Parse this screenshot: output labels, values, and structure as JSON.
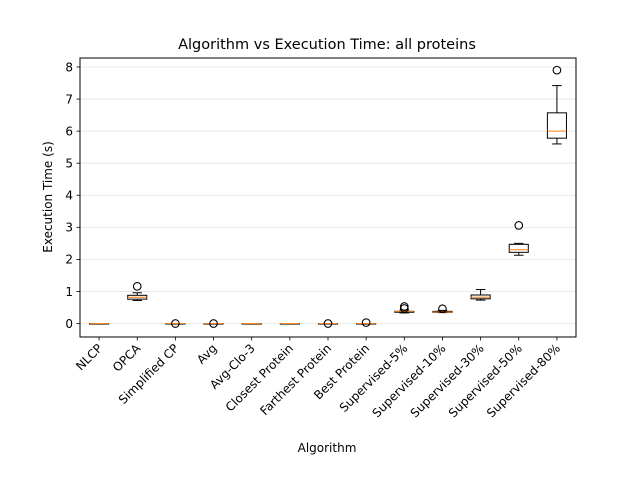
{
  "chart_data": {
    "type": "box",
    "title": "Algorithm vs Execution Time: all proteins",
    "xlabel": "Algorithm",
    "ylabel": "Execution Time (s)",
    "ylim": [
      -0.42,
      8.28
    ],
    "yticks": [
      0,
      1,
      2,
      3,
      4,
      5,
      6,
      7,
      8
    ],
    "grid": "horizontal",
    "colors": {
      "box": "#000000",
      "median": "#ff7f0e",
      "grid": "#e6e6e6"
    },
    "categories": [
      "NLCP",
      "OPCA",
      "Simplified CP",
      "Avg",
      "Avg-Clo-3",
      "Closest Protein",
      "Farthest Protein",
      "Best Protein",
      "Supervised-5%",
      "Supervised-10%",
      "Supervised-30%",
      "Supervised-50%",
      "Supervised-80%"
    ],
    "boxes": [
      {
        "whislo": 0.0,
        "q1": 0.0,
        "med": 0.0,
        "q3": 0.0,
        "whishi": 0.0,
        "fliers": []
      },
      {
        "whislo": 0.72,
        "q1": 0.76,
        "med": 0.82,
        "q3": 0.88,
        "whishi": 0.96,
        "fliers": [
          1.16
        ]
      },
      {
        "whislo": 0.0,
        "q1": 0.0,
        "med": 0.0,
        "q3": 0.0,
        "whishi": 0.0,
        "fliers": [
          0.0
        ]
      },
      {
        "whislo": 0.0,
        "q1": 0.0,
        "med": 0.0,
        "q3": 0.0,
        "whishi": 0.0,
        "fliers": [
          0.0
        ]
      },
      {
        "whislo": 0.0,
        "q1": 0.0,
        "med": 0.0,
        "q3": 0.0,
        "whishi": 0.0,
        "fliers": []
      },
      {
        "whislo": 0.0,
        "q1": 0.0,
        "med": 0.0,
        "q3": 0.0,
        "whishi": 0.0,
        "fliers": []
      },
      {
        "whislo": 0.0,
        "q1": 0.0,
        "med": 0.0,
        "q3": 0.0,
        "whishi": 0.0,
        "fliers": [
          0.0
        ]
      },
      {
        "whislo": 0.0,
        "q1": 0.0,
        "med": 0.0,
        "q3": 0.0,
        "whishi": 0.0,
        "fliers": [
          0.03
        ]
      },
      {
        "whislo": 0.33,
        "q1": 0.35,
        "med": 0.37,
        "q3": 0.38,
        "whishi": 0.42,
        "fliers": [
          0.47,
          0.53
        ]
      },
      {
        "whislo": 0.34,
        "q1": 0.35,
        "med": 0.36,
        "q3": 0.38,
        "whishi": 0.41,
        "fliers": [
          0.46
        ]
      },
      {
        "whislo": 0.73,
        "q1": 0.77,
        "med": 0.82,
        "q3": 0.89,
        "whishi": 1.06,
        "fliers": []
      },
      {
        "whislo": 2.13,
        "q1": 2.22,
        "med": 2.3,
        "q3": 2.47,
        "whishi": 2.5,
        "fliers": [
          3.06
        ]
      },
      {
        "whislo": 5.6,
        "q1": 5.78,
        "med": 6.0,
        "q3": 6.57,
        "whishi": 7.42,
        "fliers": [
          7.9
        ]
      }
    ]
  }
}
